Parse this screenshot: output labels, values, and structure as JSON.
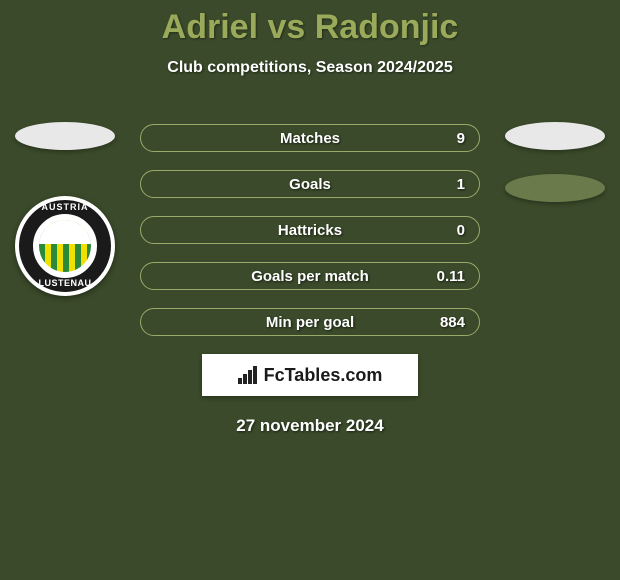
{
  "header": {
    "title": "Adriel vs Radonjic",
    "subtitle": "Club competitions, Season 2024/2025"
  },
  "colors": {
    "background": "#3a4a2a",
    "accent": "#9aaa5a",
    "bar_border": "#9aaa6a",
    "text": "#ffffff",
    "pill_light": "#e8e8e8",
    "pill_dark": "#6a7a4a"
  },
  "club": {
    "name_top": "AUSTRIA",
    "name_bottom": "LUSTENAU"
  },
  "stats": [
    {
      "label": "Matches",
      "value": "9"
    },
    {
      "label": "Goals",
      "value": "1"
    },
    {
      "label": "Hattricks",
      "value": "0"
    },
    {
      "label": "Goals per match",
      "value": "0.11"
    },
    {
      "label": "Min per goal",
      "value": "884"
    }
  ],
  "brand": {
    "text": "FcTables.com"
  },
  "footer": {
    "date": "27 november 2024"
  }
}
